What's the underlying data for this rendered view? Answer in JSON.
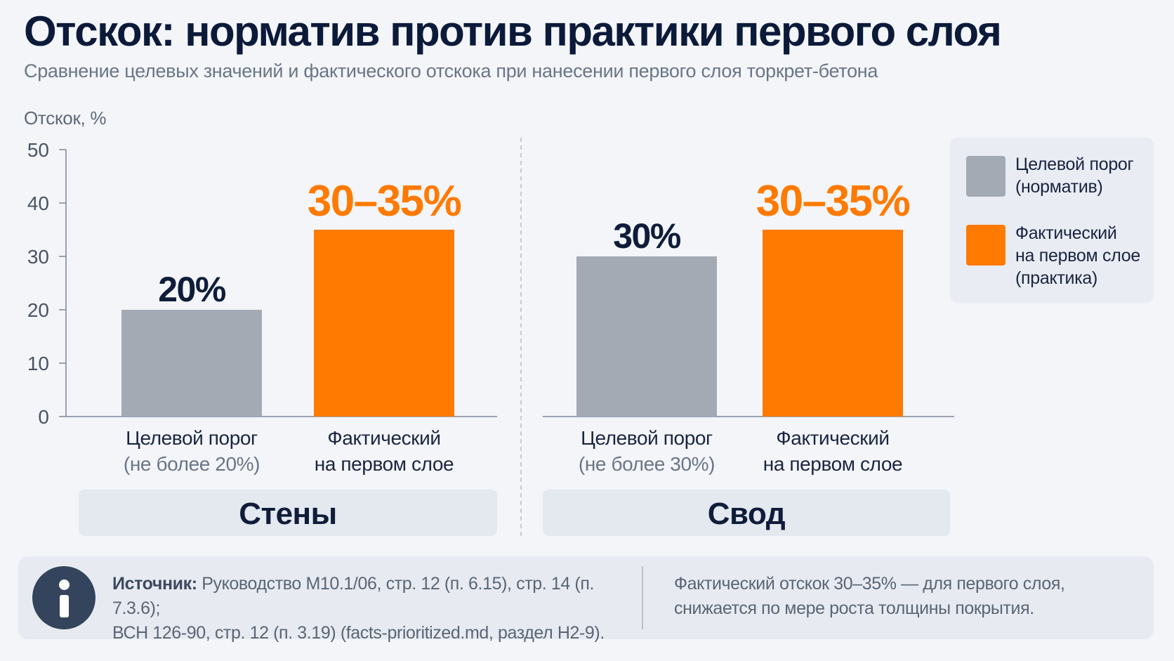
{
  "title": "Отскок: норматив против практики первого слоя",
  "subtitle": "Сравнение целевых значений и фактического отскока при нанесении первого слоя торкрет-бетона",
  "colors": {
    "target": "#a3aab3",
    "actual": "#ff7a00",
    "panel": "#e4e8ef"
  },
  "chart_data": {
    "type": "bar",
    "ylabel": "Отскок, %",
    "ylim": [
      0,
      50
    ],
    "yticks": [
      0,
      10,
      20,
      30,
      40,
      50
    ],
    "grid": false,
    "legend_position": "top-right",
    "groups": [
      {
        "name": "Стены",
        "bars": [
          {
            "series": "target",
            "value": 20,
            "label": "20%",
            "category_line1": "Целевой порог",
            "category_line2": "(не более 20%)"
          },
          {
            "series": "actual",
            "value": 35,
            "label": "30–35%",
            "category_line1": "Фактический",
            "category_line2": "на первом слое"
          }
        ]
      },
      {
        "name": "Свод",
        "bars": [
          {
            "series": "target",
            "value": 30,
            "label": "30%",
            "category_line1": "Целевой порог",
            "category_line2": "(не более 30%)"
          },
          {
            "series": "actual",
            "value": 35,
            "label": "30–35%",
            "category_line1": "Фактический",
            "category_line2": "на первом слое"
          }
        ]
      }
    ]
  },
  "legend": {
    "items": [
      {
        "series": "target",
        "lines": [
          "Целевой порог",
          "(норматив)"
        ]
      },
      {
        "series": "actual",
        "lines": [
          "Фактический",
          "на первом слое",
          "(практика)"
        ]
      }
    ]
  },
  "footer": {
    "source_label": "Источник:",
    "source_line1": "Руководство М10.1/06, стр. 12 (п. 6.15), стр. 14 (п. 7.3.6);",
    "source_line2": "ВСН 126-90, стр. 12 (п. 3.19)  (facts-prioritized.md, раздел H2-9).",
    "note_line1": "Фактический отскок 30–35% — для первого слоя,",
    "note_line2": "снижается по мере роста толщины покрытия."
  }
}
